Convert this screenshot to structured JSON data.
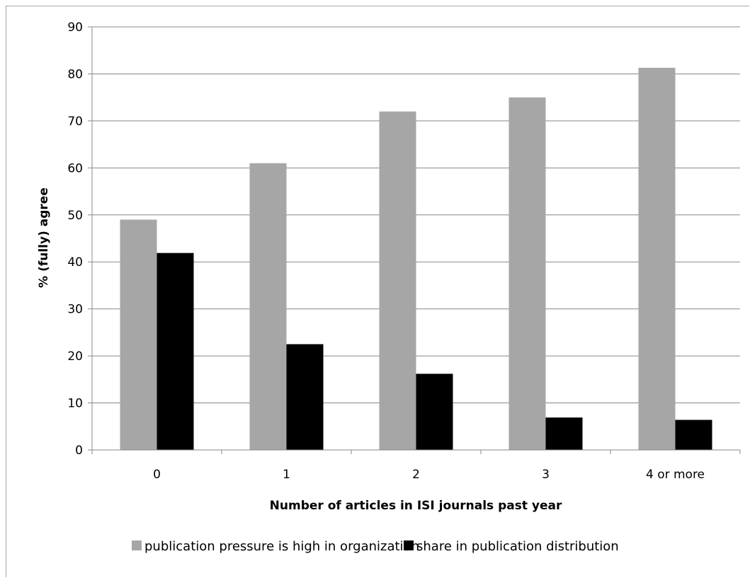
{
  "chart_data": {
    "type": "bar",
    "title": "",
    "xlabel": "Number of articles in ISI journals past year",
    "ylabel": "% (fully) agree",
    "categories": [
      "0",
      "1",
      "2",
      "3",
      "4 or more"
    ],
    "ylim": [
      0,
      90
    ],
    "yticks": [
      "0",
      "10",
      "20",
      "30",
      "40",
      "50",
      "60",
      "70",
      "80",
      "90"
    ],
    "grid": true,
    "legend_position": "bottom",
    "series": [
      {
        "name": "publication pressure is high in organization",
        "color": "#a6a6a6",
        "values": [
          49,
          61,
          72,
          75,
          81.3
        ]
      },
      {
        "name": "share in publication distribution",
        "color": "#000000",
        "values": [
          41.9,
          22.5,
          16.2,
          6.9,
          6.4
        ]
      }
    ]
  }
}
